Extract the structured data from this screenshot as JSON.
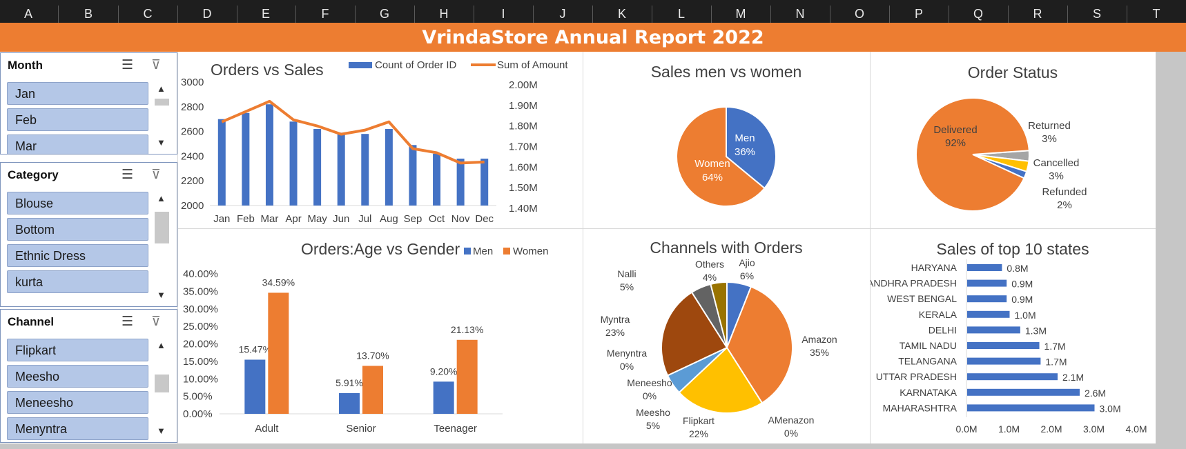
{
  "column_headers": [
    "A",
    "B",
    "C",
    "D",
    "E",
    "F",
    "G",
    "H",
    "I",
    "J",
    "K",
    "L",
    "M",
    "N",
    "O",
    "P",
    "Q",
    "R",
    "S",
    "T"
  ],
  "report_title": "VrindaStore Annual Report 2022",
  "slicers": [
    {
      "title": "Month",
      "items": [
        "Jan",
        "Feb",
        "Mar"
      ]
    },
    {
      "title": "Category",
      "items": [
        "Blouse",
        "Bottom",
        "Ethnic Dress",
        "kurta"
      ]
    },
    {
      "title": "Channel",
      "items": [
        "Flipkart",
        "Meesho",
        "Meneesho",
        "Menyntra"
      ]
    }
  ],
  "icons": {
    "multi_select": "multi-select-icon",
    "clear_filter": "clear-filter-icon",
    "scroll_up": "chevron-up-icon",
    "scroll_down": "chevron-down-icon"
  },
  "colors": {
    "accent_orange": "#ED7D31",
    "blue": "#4472C4",
    "yellow": "#FFC000",
    "gray": "#A5A5A5",
    "light_blue": "#5B9BD5",
    "brown": "#9E480E",
    "dark_gray": "#636363",
    "olive": "#997300",
    "slicer_item": "#B4C7E7"
  },
  "chart_data": [
    {
      "type": "bar",
      "title": "Orders vs Sales",
      "categories": [
        "Jan",
        "Feb",
        "Mar",
        "Apr",
        "May",
        "Jun",
        "Jul",
        "Aug",
        "Sep",
        "Oct",
        "Nov",
        "Dec"
      ],
      "series": [
        {
          "name": "Count of Order ID",
          "type": "bar",
          "axis": "left",
          "values": [
            2700,
            2750,
            2820,
            2680,
            2620,
            2590,
            2580,
            2620,
            2490,
            2420,
            2380,
            2380
          ]
        },
        {
          "name": "Sum of Amount",
          "type": "line",
          "axis": "right",
          "values": [
            1.82,
            1.87,
            1.92,
            1.83,
            1.8,
            1.76,
            1.78,
            1.82,
            1.69,
            1.67,
            1.62,
            1.625
          ]
        }
      ],
      "ylim": [
        2000,
        3000
      ],
      "yticks": [
        "3000",
        "2800",
        "2600",
        "2400",
        "2200",
        "2000"
      ],
      "y2lim": [
        1.4,
        2.0
      ],
      "y2ticks": [
        "2.00M",
        "1.90M",
        "1.80M",
        "1.70M",
        "1.60M",
        "1.50M",
        "1.40M"
      ],
      "legend": "top"
    },
    {
      "type": "pie",
      "title": "Sales men vs women",
      "slices": [
        {
          "label": "Men",
          "value": 36,
          "pct_label": "36%"
        },
        {
          "label": "Women",
          "value": 64,
          "pct_label": "64%"
        }
      ]
    },
    {
      "type": "pie",
      "title": "Order Status",
      "slices": [
        {
          "label": "Delivered",
          "value": 92,
          "pct_label": "92%"
        },
        {
          "label": "Returned",
          "value": 3,
          "pct_label": "3%"
        },
        {
          "label": "Cancelled",
          "value": 3,
          "pct_label": "3%"
        },
        {
          "label": "Refunded",
          "value": 2,
          "pct_label": "2%"
        }
      ]
    },
    {
      "type": "bar",
      "title": "Orders:Age vs Gender",
      "categories": [
        "Adult",
        "Senior",
        "Teenager"
      ],
      "series": [
        {
          "name": "Men",
          "values": [
            15.47,
            5.91,
            9.2
          ],
          "labels": [
            "15.47%",
            "5.91%",
            "9.20%"
          ]
        },
        {
          "name": "Women",
          "values": [
            34.59,
            13.7,
            21.13
          ],
          "labels": [
            "34.59%",
            "13.70%",
            "21.13%"
          ]
        }
      ],
      "ylim": [
        0,
        40
      ],
      "yticks": [
        "40.00%",
        "35.00%",
        "30.00%",
        "25.00%",
        "20.00%",
        "15.00%",
        "10.00%",
        "5.00%",
        "0.00%"
      ],
      "legend": "top"
    },
    {
      "type": "pie",
      "title": "Channels with Orders",
      "slices": [
        {
          "label": "Ajio",
          "value": 6,
          "pct_label": "6%"
        },
        {
          "label": "Amazon",
          "value": 35,
          "pct_label": "35%"
        },
        {
          "label": "AMenazon",
          "value": 0,
          "pct_label": "0%"
        },
        {
          "label": "Flipkart",
          "value": 22,
          "pct_label": "22%"
        },
        {
          "label": "Meesho",
          "value": 5,
          "pct_label": "5%"
        },
        {
          "label": "Meneesho",
          "value": 0,
          "pct_label": "0%"
        },
        {
          "label": "Menyntra",
          "value": 0,
          "pct_label": "0%"
        },
        {
          "label": "Myntra",
          "value": 23,
          "pct_label": "23%"
        },
        {
          "label": "Nalli",
          "value": 5,
          "pct_label": "5%"
        },
        {
          "label": "Others",
          "value": 4,
          "pct_label": "4%"
        }
      ]
    },
    {
      "type": "bar",
      "orientation": "horizontal",
      "title": "Sales of top 10 states",
      "categories": [
        "HARYANA",
        "ANDHRA PRADESH",
        "WEST BENGAL",
        "KERALA",
        "DELHI",
        "TAMIL NADU",
        "TELANGANA",
        "UTTAR PRADESH",
        "KARNATAKA",
        "MAHARASHTRA"
      ],
      "values": [
        0.82,
        0.93,
        0.93,
        1.0,
        1.25,
        1.7,
        1.73,
        2.13,
        2.65,
        3.0
      ],
      "labels": [
        "0.8M",
        "0.9M",
        "0.9M",
        "1.0M",
        "1.3M",
        "1.7M",
        "1.7M",
        "2.1M",
        "2.6M",
        "3.0M"
      ],
      "xlim": [
        0,
        4
      ],
      "xticks": [
        "0.0M",
        "1.0M",
        "2.0M",
        "3.0M",
        "4.0M"
      ]
    }
  ]
}
